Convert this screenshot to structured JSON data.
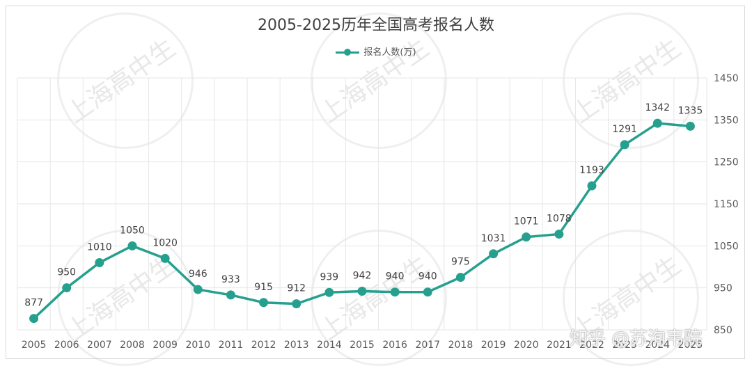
{
  "chart_data": {
    "type": "line",
    "title": "2005-2025历年全国高考报名人数",
    "legend_position": "top",
    "grid": true,
    "y_axis_position": "right",
    "ylim": [
      850,
      1450
    ],
    "y_ticks": [
      850,
      950,
      1050,
      1150,
      1250,
      1350,
      1450
    ],
    "y_tick_labels": [
      "850",
      "950",
      "1050",
      "1150",
      "1250",
      "1350",
      "1450"
    ],
    "categories": [
      "2005",
      "2006",
      "2007",
      "2008",
      "2009",
      "2010",
      "2011",
      "2012",
      "2013",
      "2014",
      "2015",
      "2016",
      "2017",
      "2018",
      "2019",
      "2020",
      "2021",
      "2022",
      "2023",
      "2024",
      "2025"
    ],
    "series": [
      {
        "name": "报名人数(万)",
        "color": "#26a08e",
        "values": [
          877,
          950,
          1010,
          1050,
          1020,
          946,
          933,
          915,
          912,
          939,
          942,
          940,
          940,
          975,
          1031,
          1071,
          1078,
          1193,
          1291,
          1342,
          1335
        ],
        "labels": [
          "877",
          "950",
          "1010",
          "1050",
          "1020",
          "946",
          "933",
          "915",
          "912",
          "939",
          "942",
          "940",
          "940",
          "975",
          "1031",
          "1071",
          "1078",
          "1193",
          "1291",
          "1342",
          "1335"
        ]
      }
    ]
  },
  "watermark": {
    "text": "上海高中生",
    "overlay": "知乎 @苏洵韦院"
  }
}
